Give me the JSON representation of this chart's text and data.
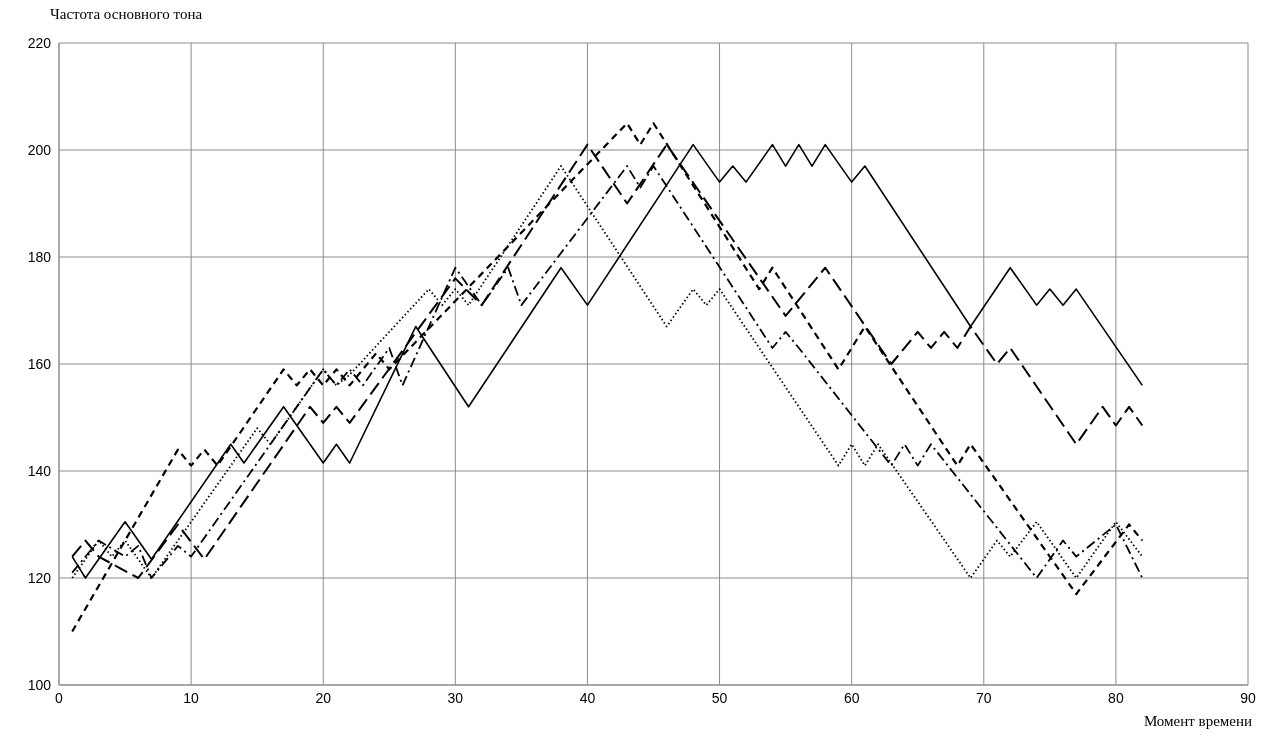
{
  "chart_data": {
    "type": "line",
    "ylabel": "Частота основного тона",
    "xlabel": "Момент времени",
    "xlim": [
      0,
      90
    ],
    "xticks": [
      0,
      10,
      20,
      30,
      40,
      50,
      60,
      70,
      80,
      90
    ],
    "ylim": [
      100,
      220
    ],
    "yticks": [
      100,
      120,
      140,
      160,
      180,
      200,
      220
    ],
    "grid": true,
    "marker": "none",
    "series": [
      {
        "color": "#000000",
        "line_style": "solid",
        "x": [
          1,
          2,
          5,
          7,
          13,
          14,
          17,
          20,
          21,
          22,
          27,
          31,
          38,
          40,
          48,
          50,
          51,
          52,
          54,
          55,
          56,
          57,
          58,
          60,
          61,
          69,
          72,
          74,
          75,
          76,
          77,
          82
        ],
        "values": [
          124,
          120,
          130.5,
          123.5,
          145,
          141.5,
          152,
          141.5,
          145,
          141.5,
          167,
          152,
          178,
          171,
          201,
          194,
          197,
          194,
          201,
          197,
          201,
          197,
          201,
          194,
          197,
          167,
          178,
          171,
          174,
          171,
          174,
          156
        ]
      },
      {
        "color": "#000000",
        "line_style": "dashed",
        "x": [
          1,
          9,
          10,
          11,
          12,
          17,
          18,
          19,
          20,
          21,
          22,
          24,
          25,
          43,
          44,
          45,
          53,
          54,
          59,
          61,
          68,
          69,
          77,
          81,
          82
        ],
        "values": [
          110,
          144,
          141,
          144,
          141,
          159,
          156,
          159,
          156,
          159,
          156,
          162,
          159,
          205,
          201,
          205,
          174,
          178,
          159,
          167,
          141,
          145,
          117,
          130,
          127
        ]
      },
      {
        "color": "#000000",
        "line_style": "longdash",
        "x": [
          1,
          2,
          3,
          6,
          9,
          11,
          19,
          20,
          21,
          22,
          30,
          32,
          40,
          43,
          46,
          55,
          58,
          63,
          65,
          66,
          67,
          68,
          69,
          71,
          72,
          77,
          79,
          80,
          81,
          82
        ],
        "values": [
          124,
          127,
          124,
          120,
          130,
          123.5,
          152,
          149,
          152,
          149,
          176,
          171,
          201,
          190,
          201,
          169,
          178,
          160,
          166,
          163,
          166,
          163,
          167,
          160,
          163,
          145,
          152,
          148.5,
          152,
          148.5
        ]
      },
      {
        "color": "#000000",
        "line_style": "dashdot",
        "x": [
          1,
          3,
          5,
          6,
          7,
          9,
          10,
          20,
          21,
          22,
          23,
          25,
          26,
          30,
          32,
          34,
          35,
          43,
          44,
          45,
          54,
          55,
          56,
          63,
          64,
          65,
          66,
          74,
          76,
          77,
          80,
          82
        ],
        "values": [
          121,
          127,
          124,
          126,
          120,
          126,
          124,
          159,
          156,
          159,
          156,
          163,
          156,
          178,
          171,
          178,
          171,
          197,
          193,
          197,
          163,
          166,
          163,
          141,
          145,
          141,
          145,
          120,
          127,
          124,
          130,
          120
        ]
      },
      {
        "color": "#000000",
        "line_style": "dotted",
        "x": [
          1,
          3,
          4,
          5,
          7,
          15,
          16,
          20,
          21,
          22,
          28,
          29,
          30,
          31,
          38,
          46,
          48,
          49,
          50,
          59,
          60,
          61,
          62,
          69,
          71,
          72,
          74,
          77,
          80,
          82
        ],
        "values": [
          120,
          127,
          124,
          127,
          120,
          148,
          145,
          159,
          156,
          158,
          174,
          171,
          174,
          171,
          197,
          167,
          174,
          171,
          174,
          141,
          145,
          141,
          145,
          120,
          127,
          124,
          130.5,
          120,
          130.5,
          124
        ]
      }
    ]
  }
}
